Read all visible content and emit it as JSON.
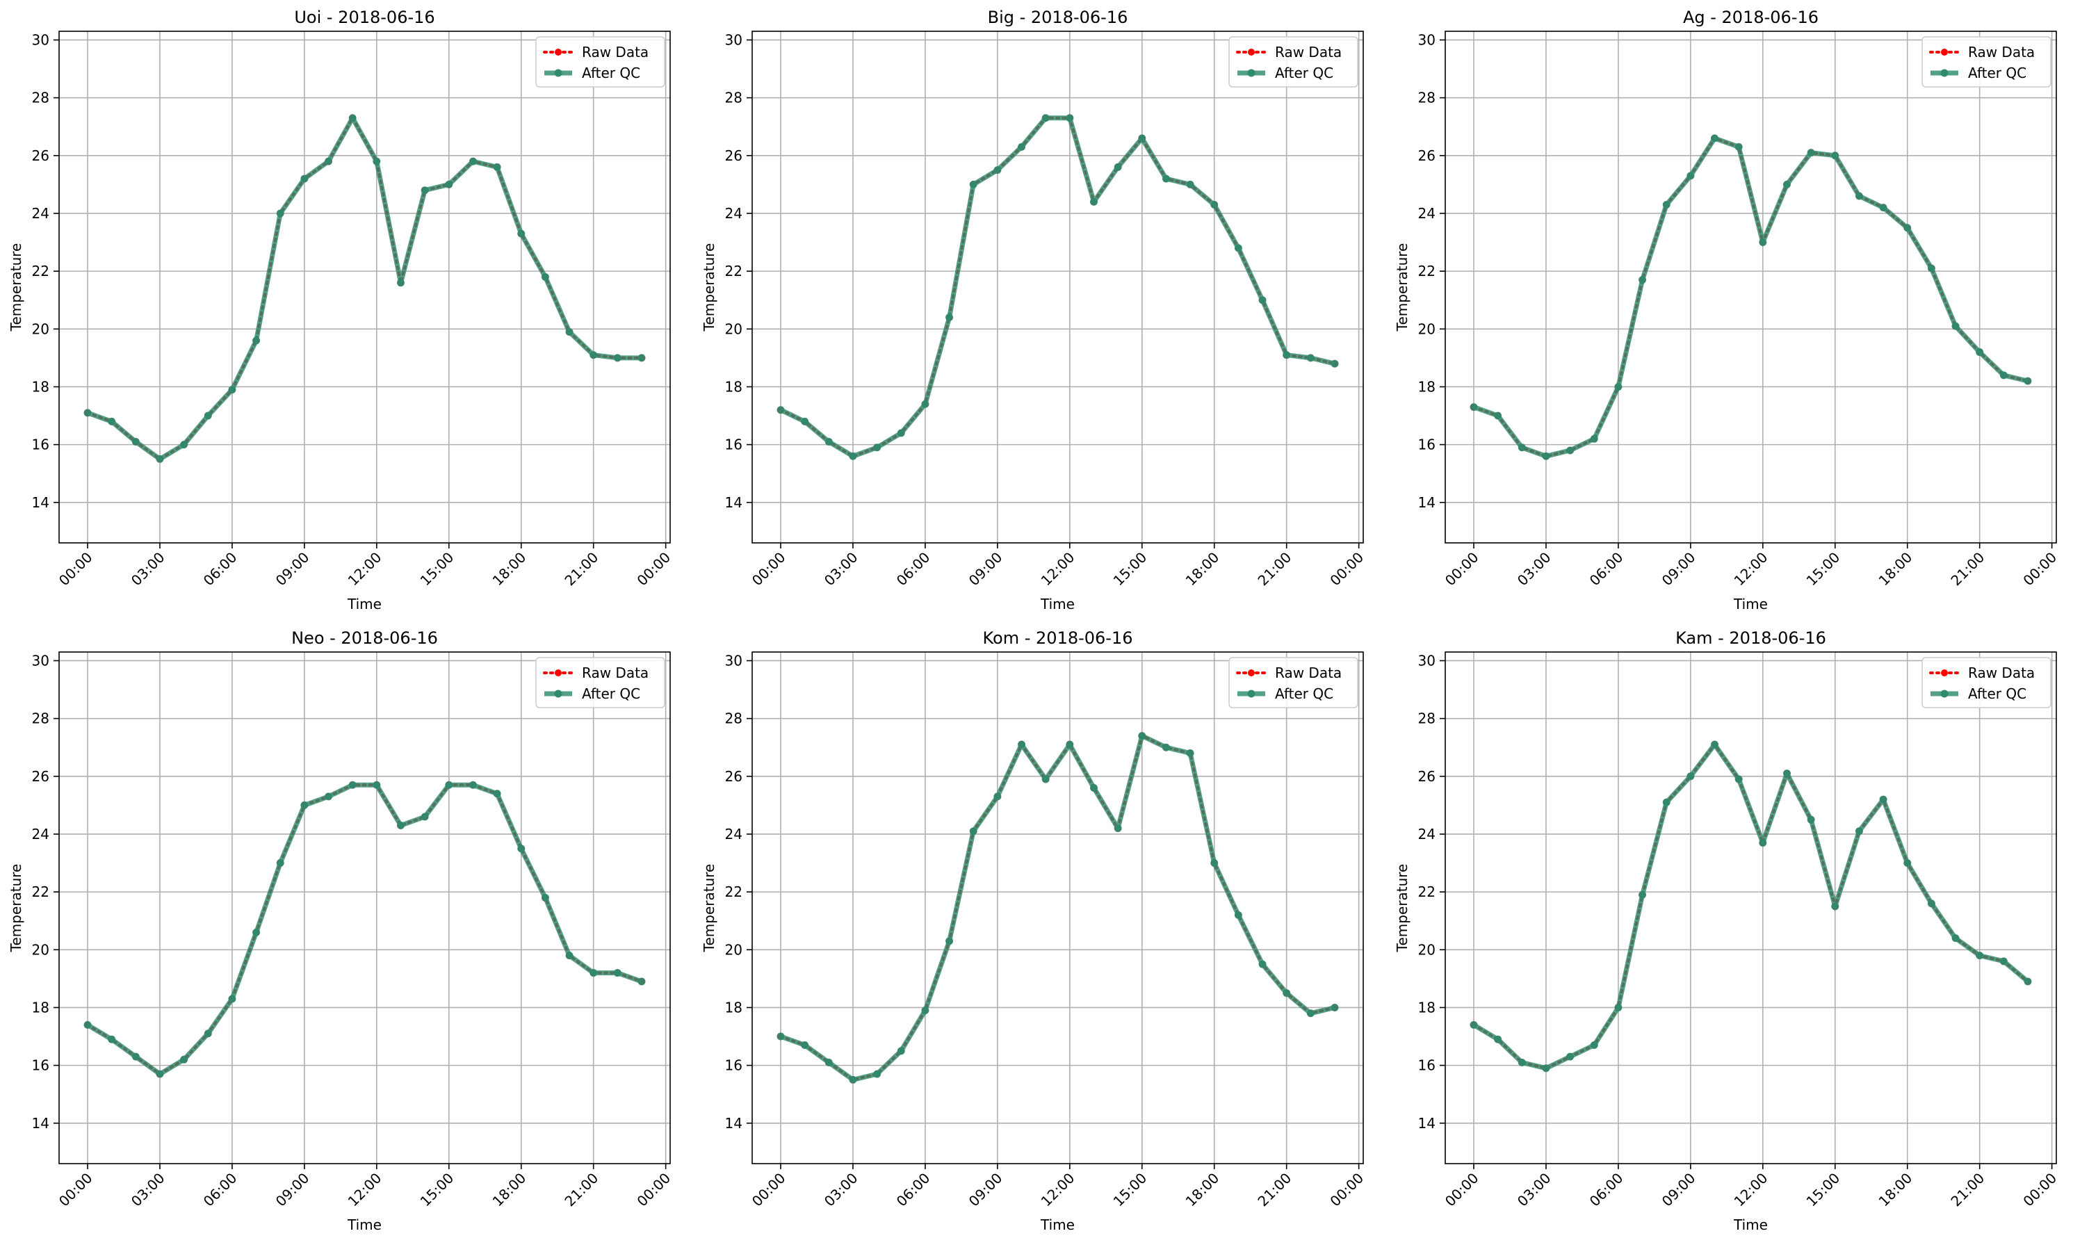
{
  "chart_data": [
    {
      "type": "line",
      "title": "Uoi - 2018-06-16",
      "xlabel": "Time",
      "ylabel": "Temperature",
      "ylim": [
        12.6,
        30.3
      ],
      "xlim": [
        "2018-06-15 22:49",
        "2018-06-17 00:11"
      ],
      "yticks": [
        14,
        16,
        18,
        20,
        22,
        24,
        26,
        28,
        30
      ],
      "xticks": [
        "00:00",
        "03:00",
        "06:00",
        "09:00",
        "12:00",
        "15:00",
        "18:00",
        "21:00",
        "00:00"
      ],
      "x": [
        "00:00",
        "01:00",
        "02:00",
        "03:00",
        "04:00",
        "05:00",
        "06:00",
        "07:00",
        "08:00",
        "09:00",
        "10:00",
        "11:00",
        "12:00",
        "13:00",
        "14:00",
        "15:00",
        "16:00",
        "17:00",
        "18:00",
        "19:00",
        "20:00",
        "21:00",
        "22:00",
        "23:00"
      ],
      "grid": true,
      "legend_position": "top-right",
      "series": [
        {
          "name": "Raw Data",
          "values": [
            17.1,
            16.8,
            16.1,
            15.5,
            16.0,
            17.0,
            17.9,
            19.6,
            24.0,
            25.2,
            25.8,
            27.3,
            25.8,
            21.6,
            24.8,
            25.0,
            25.8,
            25.6,
            23.3,
            21.8,
            19.9,
            19.1,
            19.0,
            19.0
          ]
        },
        {
          "name": "After QC",
          "values": [
            17.1,
            16.8,
            16.1,
            15.5,
            16.0,
            17.0,
            17.9,
            19.6,
            24.0,
            25.2,
            25.8,
            27.3,
            25.8,
            21.6,
            24.8,
            25.0,
            25.8,
            25.6,
            23.3,
            21.8,
            19.9,
            19.1,
            19.0,
            19.0
          ]
        }
      ]
    },
    {
      "type": "line",
      "title": "Big - 2018-06-16",
      "xlabel": "Time",
      "ylabel": "Temperature",
      "ylim": [
        12.6,
        30.3
      ],
      "xlim": [
        "2018-06-15 22:49",
        "2018-06-17 00:11"
      ],
      "yticks": [
        14,
        16,
        18,
        20,
        22,
        24,
        26,
        28,
        30
      ],
      "xticks": [
        "00:00",
        "03:00",
        "06:00",
        "09:00",
        "12:00",
        "15:00",
        "18:00",
        "21:00",
        "00:00"
      ],
      "x": [
        "00:00",
        "01:00",
        "02:00",
        "03:00",
        "04:00",
        "05:00",
        "06:00",
        "07:00",
        "08:00",
        "09:00",
        "10:00",
        "11:00",
        "12:00",
        "13:00",
        "14:00",
        "15:00",
        "16:00",
        "17:00",
        "18:00",
        "19:00",
        "20:00",
        "21:00",
        "22:00",
        "23:00"
      ],
      "grid": true,
      "legend_position": "top-right",
      "series": [
        {
          "name": "Raw Data",
          "values": [
            17.2,
            16.8,
            16.1,
            15.6,
            15.9,
            16.4,
            17.4,
            20.4,
            25.0,
            25.5,
            26.3,
            27.3,
            27.3,
            24.4,
            25.6,
            26.6,
            25.2,
            25.0,
            24.3,
            22.8,
            21.0,
            19.1,
            19.0,
            18.8
          ]
        },
        {
          "name": "After QC",
          "values": [
            17.2,
            16.8,
            16.1,
            15.6,
            15.9,
            16.4,
            17.4,
            20.4,
            25.0,
            25.5,
            26.3,
            27.3,
            27.3,
            24.4,
            25.6,
            26.6,
            25.2,
            25.0,
            24.3,
            22.8,
            21.0,
            19.1,
            19.0,
            18.8
          ]
        }
      ]
    },
    {
      "type": "line",
      "title": "Ag - 2018-06-16",
      "xlabel": "Time",
      "ylabel": "Temperature",
      "ylim": [
        12.6,
        30.3
      ],
      "xlim": [
        "2018-06-15 22:49",
        "2018-06-17 00:11"
      ],
      "yticks": [
        14,
        16,
        18,
        20,
        22,
        24,
        26,
        28,
        30
      ],
      "xticks": [
        "00:00",
        "03:00",
        "06:00",
        "09:00",
        "12:00",
        "15:00",
        "18:00",
        "21:00",
        "00:00"
      ],
      "x": [
        "00:00",
        "01:00",
        "02:00",
        "03:00",
        "04:00",
        "05:00",
        "06:00",
        "07:00",
        "08:00",
        "09:00",
        "10:00",
        "11:00",
        "12:00",
        "13:00",
        "14:00",
        "15:00",
        "16:00",
        "17:00",
        "18:00",
        "19:00",
        "20:00",
        "21:00",
        "22:00",
        "23:00"
      ],
      "grid": true,
      "legend_position": "top-right",
      "series": [
        {
          "name": "Raw Data",
          "values": [
            17.3,
            17.0,
            15.9,
            15.6,
            15.8,
            16.2,
            18.0,
            21.7,
            24.3,
            25.3,
            26.6,
            26.3,
            23.0,
            25.0,
            26.1,
            26.0,
            24.6,
            24.2,
            23.5,
            22.1,
            20.1,
            19.2,
            18.4,
            18.2
          ]
        },
        {
          "name": "After QC",
          "values": [
            17.3,
            17.0,
            15.9,
            15.6,
            15.8,
            16.2,
            18.0,
            21.7,
            24.3,
            25.3,
            26.6,
            26.3,
            23.0,
            25.0,
            26.1,
            26.0,
            24.6,
            24.2,
            23.5,
            22.1,
            20.1,
            19.2,
            18.4,
            18.2
          ]
        }
      ]
    },
    {
      "type": "line",
      "title": "Neo - 2018-06-16",
      "xlabel": "Time",
      "ylabel": "Temperature",
      "ylim": [
        12.6,
        30.3
      ],
      "xlim": [
        "2018-06-15 22:49",
        "2018-06-17 00:11"
      ],
      "yticks": [
        14,
        16,
        18,
        20,
        22,
        24,
        26,
        28,
        30
      ],
      "xticks": [
        "00:00",
        "03:00",
        "06:00",
        "09:00",
        "12:00",
        "15:00",
        "18:00",
        "21:00",
        "00:00"
      ],
      "x": [
        "00:00",
        "01:00",
        "02:00",
        "03:00",
        "04:00",
        "05:00",
        "06:00",
        "07:00",
        "08:00",
        "09:00",
        "10:00",
        "11:00",
        "12:00",
        "13:00",
        "14:00",
        "15:00",
        "16:00",
        "17:00",
        "18:00",
        "19:00",
        "20:00",
        "21:00",
        "22:00",
        "23:00"
      ],
      "grid": true,
      "legend_position": "top-right",
      "series": [
        {
          "name": "Raw Data",
          "values": [
            17.4,
            16.9,
            16.3,
            15.7,
            16.2,
            17.1,
            18.3,
            20.6,
            23.0,
            25.0,
            25.3,
            25.7,
            25.7,
            24.3,
            24.6,
            25.7,
            25.7,
            25.4,
            23.5,
            21.8,
            19.8,
            19.2,
            19.2,
            18.9
          ]
        },
        {
          "name": "After QC",
          "values": [
            17.4,
            16.9,
            16.3,
            15.7,
            16.2,
            17.1,
            18.3,
            20.6,
            23.0,
            25.0,
            25.3,
            25.7,
            25.7,
            24.3,
            24.6,
            25.7,
            25.7,
            25.4,
            23.5,
            21.8,
            19.8,
            19.2,
            19.2,
            18.9
          ]
        }
      ]
    },
    {
      "type": "line",
      "title": "Kom - 2018-06-16",
      "xlabel": "Time",
      "ylabel": "Temperature",
      "ylim": [
        12.6,
        30.3
      ],
      "xlim": [
        "2018-06-15 22:49",
        "2018-06-17 00:11"
      ],
      "yticks": [
        14,
        16,
        18,
        20,
        22,
        24,
        26,
        28,
        30
      ],
      "xticks": [
        "00:00",
        "03:00",
        "06:00",
        "09:00",
        "12:00",
        "15:00",
        "18:00",
        "21:00",
        "00:00"
      ],
      "x": [
        "00:00",
        "01:00",
        "02:00",
        "03:00",
        "04:00",
        "05:00",
        "06:00",
        "07:00",
        "08:00",
        "09:00",
        "10:00",
        "11:00",
        "12:00",
        "13:00",
        "14:00",
        "15:00",
        "16:00",
        "17:00",
        "18:00",
        "19:00",
        "20:00",
        "21:00",
        "22:00",
        "23:00"
      ],
      "grid": true,
      "legend_position": "top-right",
      "series": [
        {
          "name": "Raw Data",
          "values": [
            17.0,
            16.7,
            16.1,
            15.5,
            15.7,
            16.5,
            17.9,
            20.3,
            24.1,
            25.3,
            27.1,
            25.9,
            27.1,
            25.6,
            24.2,
            27.4,
            27.0,
            26.8,
            23.0,
            21.2,
            19.5,
            18.5,
            17.8,
            18.0
          ]
        },
        {
          "name": "After QC",
          "values": [
            17.0,
            16.7,
            16.1,
            15.5,
            15.7,
            16.5,
            17.9,
            20.3,
            24.1,
            25.3,
            27.1,
            25.9,
            27.1,
            25.6,
            24.2,
            27.4,
            27.0,
            26.8,
            23.0,
            21.2,
            19.5,
            18.5,
            17.8,
            18.0
          ]
        }
      ]
    },
    {
      "type": "line",
      "title": "Kam - 2018-06-16",
      "xlabel": "Time",
      "ylabel": "Temperature",
      "ylim": [
        12.6,
        30.3
      ],
      "xlim": [
        "2018-06-15 22:49",
        "2018-06-17 00:11"
      ],
      "yticks": [
        14,
        16,
        18,
        20,
        22,
        24,
        26,
        28,
        30
      ],
      "xticks": [
        "00:00",
        "03:00",
        "06:00",
        "09:00",
        "12:00",
        "15:00",
        "18:00",
        "21:00",
        "00:00"
      ],
      "x": [
        "00:00",
        "01:00",
        "02:00",
        "03:00",
        "04:00",
        "05:00",
        "06:00",
        "07:00",
        "08:00",
        "09:00",
        "10:00",
        "11:00",
        "12:00",
        "13:00",
        "14:00",
        "15:00",
        "16:00",
        "17:00",
        "18:00",
        "19:00",
        "20:00",
        "21:00",
        "22:00",
        "23:00"
      ],
      "grid": true,
      "legend_position": "top-right",
      "series": [
        {
          "name": "Raw Data",
          "values": [
            17.4,
            16.9,
            16.1,
            15.9,
            16.3,
            16.7,
            18.0,
            21.9,
            25.1,
            26.0,
            27.1,
            25.9,
            23.7,
            26.1,
            24.5,
            21.5,
            24.1,
            25.2,
            23.0,
            21.6,
            20.4,
            19.8,
            19.6,
            18.9
          ]
        },
        {
          "name": "After QC",
          "values": [
            17.4,
            16.9,
            16.1,
            15.9,
            16.3,
            16.7,
            18.0,
            21.9,
            25.1,
            26.0,
            27.1,
            25.9,
            23.7,
            26.1,
            24.5,
            21.5,
            24.1,
            25.2,
            23.0,
            21.6,
            20.4,
            19.8,
            19.6,
            18.9
          ]
        }
      ]
    }
  ],
  "style": {
    "raw_color": "#ff0000",
    "qc_color": "#2e8b6e",
    "qc_line_opacity": 0.82,
    "grid_color": "#b0b0b0",
    "axis_color": "#000000"
  }
}
